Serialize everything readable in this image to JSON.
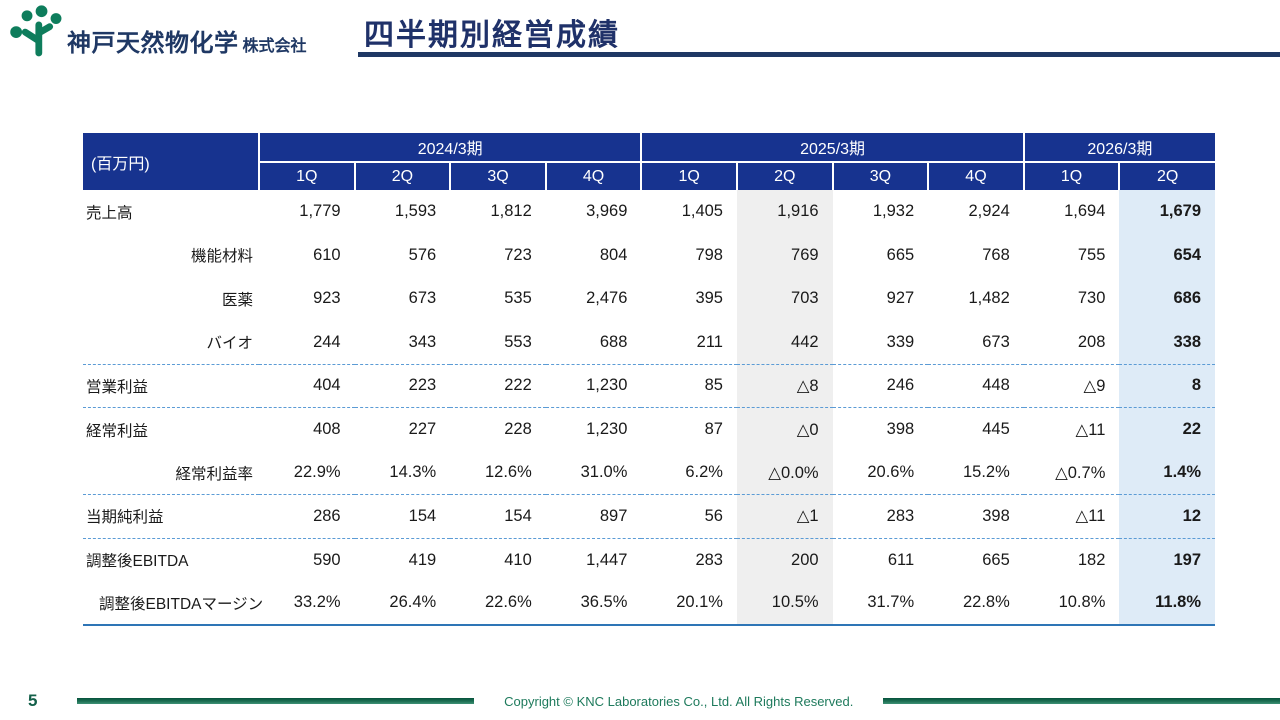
{
  "header": {
    "company_name": "神戸天然物化学",
    "company_suffix": "株式会社",
    "title": "四半期別経営成績"
  },
  "table": {
    "unit_label": "(百万円)",
    "year_groups": [
      {
        "label": "2024/3期",
        "quarters": [
          "1Q",
          "2Q",
          "3Q",
          "4Q"
        ]
      },
      {
        "label": "2025/3期",
        "quarters": [
          "1Q",
          "2Q",
          "3Q",
          "4Q"
        ]
      },
      {
        "label": "2026/3期",
        "quarters": [
          "1Q",
          "2Q"
        ]
      }
    ],
    "rows": [
      {
        "label": "売上高",
        "label_align": "left",
        "label_indent": false,
        "values": [
          "1,779",
          "1,593",
          "1,812",
          "3,969",
          "1,405",
          "1,916",
          "1,932",
          "2,924",
          "1,694",
          "1,679"
        ]
      },
      {
        "label": "機能材料",
        "label_align": "right",
        "label_indent": false,
        "values": [
          "610",
          "576",
          "723",
          "804",
          "798",
          "769",
          "665",
          "768",
          "755",
          "654"
        ]
      },
      {
        "label": "医薬",
        "label_align": "right",
        "label_indent": false,
        "values": [
          "923",
          "673",
          "535",
          "2,476",
          "395",
          "703",
          "927",
          "1,482",
          "730",
          "686"
        ]
      },
      {
        "label": "バイオ",
        "label_align": "right",
        "label_indent": false,
        "values": [
          "244",
          "343",
          "553",
          "688",
          "211",
          "442",
          "339",
          "673",
          "208",
          "338"
        ]
      },
      {
        "label": "営業利益",
        "label_align": "left",
        "label_indent": false,
        "values": [
          "404",
          "223",
          "222",
          "1,230",
          "85",
          "△8",
          "246",
          "448",
          "△9",
          "8"
        ]
      },
      {
        "label": "経常利益",
        "label_align": "left",
        "label_indent": false,
        "values": [
          "408",
          "227",
          "228",
          "1,230",
          "87",
          "△0",
          "398",
          "445",
          "△11",
          "22"
        ]
      },
      {
        "label": "経常利益率",
        "label_align": "right",
        "label_indent": false,
        "values": [
          "22.9%",
          "14.3%",
          "12.6%",
          "31.0%",
          "6.2%",
          "△0.0%",
          "20.6%",
          "15.2%",
          "△0.7%",
          "1.4%"
        ]
      },
      {
        "label": "当期純利益",
        "label_align": "left",
        "label_indent": false,
        "values": [
          "286",
          "154",
          "154",
          "897",
          "56",
          "△1",
          "283",
          "398",
          "△11",
          "12"
        ]
      },
      {
        "label": "調整後EBITDA",
        "label_align": "left",
        "label_indent": false,
        "values": [
          "590",
          "419",
          "410",
          "1,447",
          "283",
          "200",
          "611",
          "665",
          "182",
          "197"
        ]
      },
      {
        "label": "調整後EBITDAマージン",
        "label_align": "left",
        "label_indent": true,
        "values": [
          "33.2%",
          "26.4%",
          "22.6%",
          "36.5%",
          "20.1%",
          "10.5%",
          "31.7%",
          "22.8%",
          "10.8%",
          "11.8%"
        ]
      }
    ]
  },
  "footer": {
    "page_number": "5",
    "copyright": "Copyright © KNC Laboratories Co., Ltd. All Rights Reserved."
  },
  "colors": {
    "header_navy": "#17338F",
    "title_navy": "#1F3864",
    "highlight_gray": "#EFEFEF",
    "highlight_blue": "#DEEBF7",
    "dashed_line_blue": "#5B9BD5",
    "bottom_line_blue": "#2E75B6",
    "logo_green": "#0E7D5C",
    "footer_green": "#1E7A5C"
  },
  "icons": {
    "logo": "tree-logo-icon"
  }
}
